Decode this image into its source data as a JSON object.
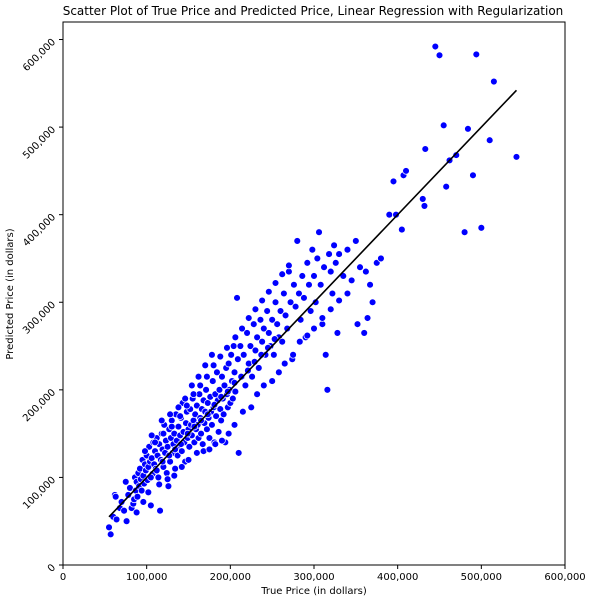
{
  "chart_data": {
    "type": "scatter",
    "title": "Scatter Plot of True Price and Predicted Price, Linear Regression with Regularization",
    "xlabel": "True Price (in dollars)",
    "ylabel": "Predicted Price (in dollars)",
    "xlim": [
      0,
      600000
    ],
    "ylim": [
      0,
      620000
    ],
    "xticks": [
      0,
      100000,
      200000,
      300000,
      400000,
      500000,
      600000
    ],
    "xtick_labels": [
      "0",
      "100,000",
      "200,000",
      "300,000",
      "400,000",
      "500,000",
      "600,000"
    ],
    "yticks": [
      0,
      100000,
      200000,
      300000,
      400000,
      500000,
      600000
    ],
    "ytick_labels": [
      "0",
      "100,000",
      "200,000",
      "300,000",
      "400,000",
      "500,000",
      "600,000"
    ],
    "grid": false,
    "legend": "none",
    "point_color": "#0000ff",
    "point_edge_color": "#ffffff",
    "line_color": "#000000",
    "reference_line": {
      "x": [
        55000,
        542000
      ],
      "y": [
        55000,
        542000
      ]
    },
    "points": [
      [
        55000,
        43000
      ],
      [
        57000,
        35000
      ],
      [
        60000,
        55000
      ],
      [
        62000,
        80000
      ],
      [
        63000,
        78000
      ],
      [
        64000,
        52000
      ],
      [
        68000,
        65000
      ],
      [
        70000,
        72000
      ],
      [
        73000,
        62000
      ],
      [
        75000,
        95000
      ],
      [
        76000,
        50000
      ],
      [
        78000,
        80000
      ],
      [
        80000,
        88000
      ],
      [
        82000,
        65000
      ],
      [
        84000,
        70000
      ],
      [
        85000,
        75000
      ],
      [
        86000,
        100000
      ],
      [
        87000,
        85000
      ],
      [
        88000,
        95000
      ],
      [
        89000,
        78000
      ],
      [
        90000,
        105000
      ],
      [
        91000,
        90000
      ],
      [
        92000,
        110000
      ],
      [
        93000,
        98000
      ],
      [
        94000,
        85000
      ],
      [
        95000,
        120000
      ],
      [
        96000,
        102000
      ],
      [
        97000,
        93000
      ],
      [
        98000,
        115000
      ],
      [
        99000,
        108000
      ],
      [
        100000,
        125000
      ],
      [
        101000,
        97000
      ],
      [
        102000,
        112000
      ],
      [
        103000,
        135000
      ],
      [
        104000,
        118000
      ],
      [
        105000,
        68000
      ],
      [
        106000,
        122000
      ],
      [
        107000,
        104000
      ],
      [
        108000,
        140000
      ],
      [
        109000,
        115000
      ],
      [
        110000,
        130000
      ],
      [
        111000,
        110000
      ],
      [
        112000,
        145000
      ],
      [
        113000,
        125000
      ],
      [
        114000,
        100000
      ],
      [
        115000,
        138000
      ],
      [
        116000,
        62000
      ],
      [
        117000,
        120000
      ],
      [
        118000,
        150000
      ],
      [
        119000,
        132000
      ],
      [
        120000,
        112000
      ],
      [
        121000,
        160000
      ],
      [
        122000,
        128000
      ],
      [
        123000,
        142000
      ],
      [
        124000,
        105000
      ],
      [
        125000,
        135000
      ],
      [
        126000,
        90000
      ],
      [
        127000,
        155000
      ],
      [
        128000,
        118000
      ],
      [
        129000,
        145000
      ],
      [
        130000,
        165000
      ],
      [
        131000,
        128000
      ],
      [
        132000,
        138000
      ],
      [
        133000,
        150000
      ],
      [
        134000,
        110000
      ],
      [
        135000,
        172000
      ],
      [
        136000,
        142000
      ],
      [
        137000,
        125000
      ],
      [
        138000,
        158000
      ],
      [
        139000,
        135000
      ],
      [
        140000,
        148000
      ],
      [
        141000,
        168000
      ],
      [
        142000,
        130000
      ],
      [
        143000,
        185000
      ],
      [
        144000,
        152000
      ],
      [
        145000,
        140000
      ],
      [
        146000,
        118000
      ],
      [
        147000,
        162000
      ],
      [
        148000,
        175000
      ],
      [
        149000,
        145000
      ],
      [
        150000,
        155000
      ],
      [
        151000,
        135000
      ],
      [
        152000,
        178000
      ],
      [
        153000,
        160000
      ],
      [
        154000,
        148000
      ],
      [
        155000,
        190000
      ],
      [
        156000,
        165000
      ],
      [
        157000,
        140000
      ],
      [
        158000,
        172000
      ],
      [
        159000,
        155000
      ],
      [
        160000,
        182000
      ],
      [
        161000,
        160000
      ],
      [
        162000,
        145000
      ],
      [
        163000,
        195000
      ],
      [
        164000,
        168000
      ],
      [
        165000,
        150000
      ],
      [
        166000,
        178000
      ],
      [
        167000,
        138000
      ],
      [
        168000,
        188000
      ],
      [
        169000,
        162000
      ],
      [
        170000,
        175000
      ],
      [
        171000,
        200000
      ],
      [
        172000,
        155000
      ],
      [
        173000,
        185000
      ],
      [
        174000,
        168000
      ],
      [
        175000,
        145000
      ],
      [
        176000,
        192000
      ],
      [
        177000,
        175000
      ],
      [
        178000,
        160000
      ],
      [
        179000,
        210000
      ],
      [
        180000,
        180000
      ],
      [
        181000,
        140000
      ],
      [
        182000,
        195000
      ],
      [
        183000,
        170000
      ],
      [
        184000,
        220000
      ],
      [
        185000,
        188000
      ],
      [
        186000,
        152000
      ],
      [
        187000,
        200000
      ],
      [
        188000,
        178000
      ],
      [
        189000,
        165000
      ],
      [
        190000,
        215000
      ],
      [
        191000,
        190000
      ],
      [
        192000,
        172000
      ],
      [
        193000,
        205000
      ],
      [
        194000,
        140000
      ],
      [
        195000,
        225000
      ],
      [
        196000,
        195000
      ],
      [
        197000,
        180000
      ],
      [
        198000,
        230000
      ],
      [
        199000,
        200000
      ],
      [
        200000,
        185000
      ],
      [
        201000,
        240000
      ],
      [
        202000,
        210000
      ],
      [
        203000,
        190000
      ],
      [
        204000,
        250000
      ],
      [
        205000,
        220000
      ],
      [
        206000,
        198000
      ],
      [
        208000,
        305000
      ],
      [
        209000,
        235000
      ],
      [
        210000,
        128000
      ],
      [
        212000,
        250000
      ],
      [
        214000,
        215000
      ],
      [
        216000,
        240000
      ],
      [
        218000,
        205000
      ],
      [
        220000,
        265000
      ],
      [
        222000,
        230000
      ],
      [
        224000,
        250000
      ],
      [
        226000,
        215000
      ],
      [
        228000,
        275000
      ],
      [
        230000,
        245000
      ],
      [
        232000,
        260000
      ],
      [
        234000,
        225000
      ],
      [
        236000,
        280000
      ],
      [
        238000,
        255000
      ],
      [
        240000,
        270000
      ],
      [
        242000,
        240000
      ],
      [
        244000,
        290000
      ],
      [
        246000,
        265000
      ],
      [
        248000,
        250000
      ],
      [
        250000,
        280000
      ],
      [
        252000,
        240000
      ],
      [
        254000,
        300000
      ],
      [
        256000,
        275000
      ],
      [
        258000,
        260000
      ],
      [
        260000,
        290000
      ],
      [
        262000,
        255000
      ],
      [
        264000,
        310000
      ],
      [
        266000,
        285000
      ],
      [
        268000,
        270000
      ],
      [
        270000,
        335000
      ],
      [
        272000,
        300000
      ],
      [
        274000,
        235000
      ],
      [
        276000,
        320000
      ],
      [
        278000,
        295000
      ],
      [
        280000,
        370000
      ],
      [
        282000,
        310000
      ],
      [
        284000,
        280000
      ],
      [
        286000,
        330000
      ],
      [
        288000,
        305000
      ],
      [
        290000,
        260000
      ],
      [
        292000,
        345000
      ],
      [
        294000,
        320000
      ],
      [
        296000,
        290000
      ],
      [
        298000,
        360000
      ],
      [
        300000,
        330000
      ],
      [
        302000,
        300000
      ],
      [
        304000,
        350000
      ],
      [
        306000,
        380000
      ],
      [
        308000,
        320000
      ],
      [
        310000,
        275000
      ],
      [
        312000,
        340000
      ],
      [
        314000,
        240000
      ],
      [
        316000,
        200000
      ],
      [
        318000,
        355000
      ],
      [
        320000,
        335000
      ],
      [
        322000,
        310000
      ],
      [
        324000,
        365000
      ],
      [
        326000,
        345000
      ],
      [
        328000,
        265000
      ],
      [
        330000,
        355000
      ],
      [
        335000,
        330000
      ],
      [
        340000,
        360000
      ],
      [
        345000,
        325000
      ],
      [
        350000,
        370000
      ],
      [
        352000,
        275000
      ],
      [
        355000,
        340000
      ],
      [
        360000,
        265000
      ],
      [
        362000,
        335000
      ],
      [
        364000,
        282000
      ],
      [
        367000,
        320000
      ],
      [
        370000,
        300000
      ],
      [
        375000,
        345000
      ],
      [
        380000,
        350000
      ],
      [
        390000,
        400000
      ],
      [
        395000,
        438000
      ],
      [
        398000,
        400000
      ],
      [
        405000,
        383000
      ],
      [
        407000,
        445000
      ],
      [
        410000,
        450000
      ],
      [
        430000,
        418000
      ],
      [
        432000,
        410000
      ],
      [
        433000,
        475000
      ],
      [
        445000,
        592000
      ],
      [
        450000,
        582000
      ],
      [
        455000,
        502000
      ],
      [
        458000,
        432000
      ],
      [
        462000,
        462000
      ],
      [
        470000,
        468000
      ],
      [
        480000,
        380000
      ],
      [
        484000,
        498000
      ],
      [
        490000,
        445000
      ],
      [
        494000,
        583000
      ],
      [
        500000,
        385000
      ],
      [
        510000,
        485000
      ],
      [
        515000,
        552000
      ],
      [
        542000,
        466000
      ],
      [
        88000,
        60000
      ],
      [
        96000,
        72000
      ],
      [
        102000,
        83000
      ],
      [
        115000,
        92000
      ],
      [
        125000,
        98000
      ],
      [
        133000,
        102000
      ],
      [
        142000,
        112000
      ],
      [
        150000,
        120000
      ],
      [
        160000,
        128000
      ],
      [
        168000,
        130000
      ],
      [
        175000,
        132000
      ],
      [
        182000,
        138000
      ],
      [
        190000,
        142000
      ],
      [
        198000,
        150000
      ],
      [
        205000,
        160000
      ],
      [
        215000,
        175000
      ],
      [
        225000,
        180000
      ],
      [
        232000,
        195000
      ],
      [
        240000,
        205000
      ],
      [
        250000,
        210000
      ],
      [
        258000,
        220000
      ],
      [
        265000,
        230000
      ],
      [
        275000,
        240000
      ],
      [
        283000,
        255000
      ],
      [
        292000,
        262000
      ],
      [
        300000,
        270000
      ],
      [
        310000,
        282000
      ],
      [
        320000,
        292000
      ],
      [
        330000,
        302000
      ],
      [
        340000,
        310000
      ],
      [
        110000,
        140000
      ],
      [
        120000,
        150000
      ],
      [
        130000,
        158000
      ],
      [
        140000,
        170000
      ],
      [
        148000,
        182000
      ],
      [
        156000,
        195000
      ],
      [
        164000,
        205000
      ],
      [
        172000,
        215000
      ],
      [
        180000,
        228000
      ],
      [
        188000,
        238000
      ],
      [
        196000,
        248000
      ],
      [
        206000,
        260000
      ],
      [
        214000,
        270000
      ],
      [
        222000,
        282000
      ],
      [
        230000,
        292000
      ],
      [
        238000,
        302000
      ],
      [
        246000,
        312000
      ],
      [
        254000,
        322000
      ],
      [
        262000,
        332000
      ],
      [
        270000,
        342000
      ],
      [
        98000,
        130000
      ],
      [
        106000,
        148000
      ],
      [
        118000,
        165000
      ],
      [
        128000,
        172000
      ],
      [
        138000,
        180000
      ],
      [
        146000,
        190000
      ],
      [
        154000,
        205000
      ],
      [
        162000,
        215000
      ],
      [
        170000,
        228000
      ],
      [
        178000,
        240000
      ],
      [
        105000,
        100000
      ],
      [
        112000,
        108000
      ],
      [
        119000,
        118000
      ],
      [
        127000,
        125000
      ],
      [
        134000,
        132000
      ],
      [
        141000,
        138000
      ],
      [
        149000,
        150000
      ],
      [
        157000,
        158000
      ],
      [
        165000,
        165000
      ],
      [
        173000,
        172000
      ],
      [
        181000,
        183000
      ],
      [
        189000,
        192000
      ],
      [
        197000,
        198000
      ],
      [
        205000,
        208000
      ],
      [
        213000,
        215000
      ],
      [
        221000,
        222000
      ],
      [
        229000,
        232000
      ],
      [
        237000,
        240000
      ],
      [
        245000,
        248000
      ],
      [
        253000,
        258000
      ]
    ]
  }
}
